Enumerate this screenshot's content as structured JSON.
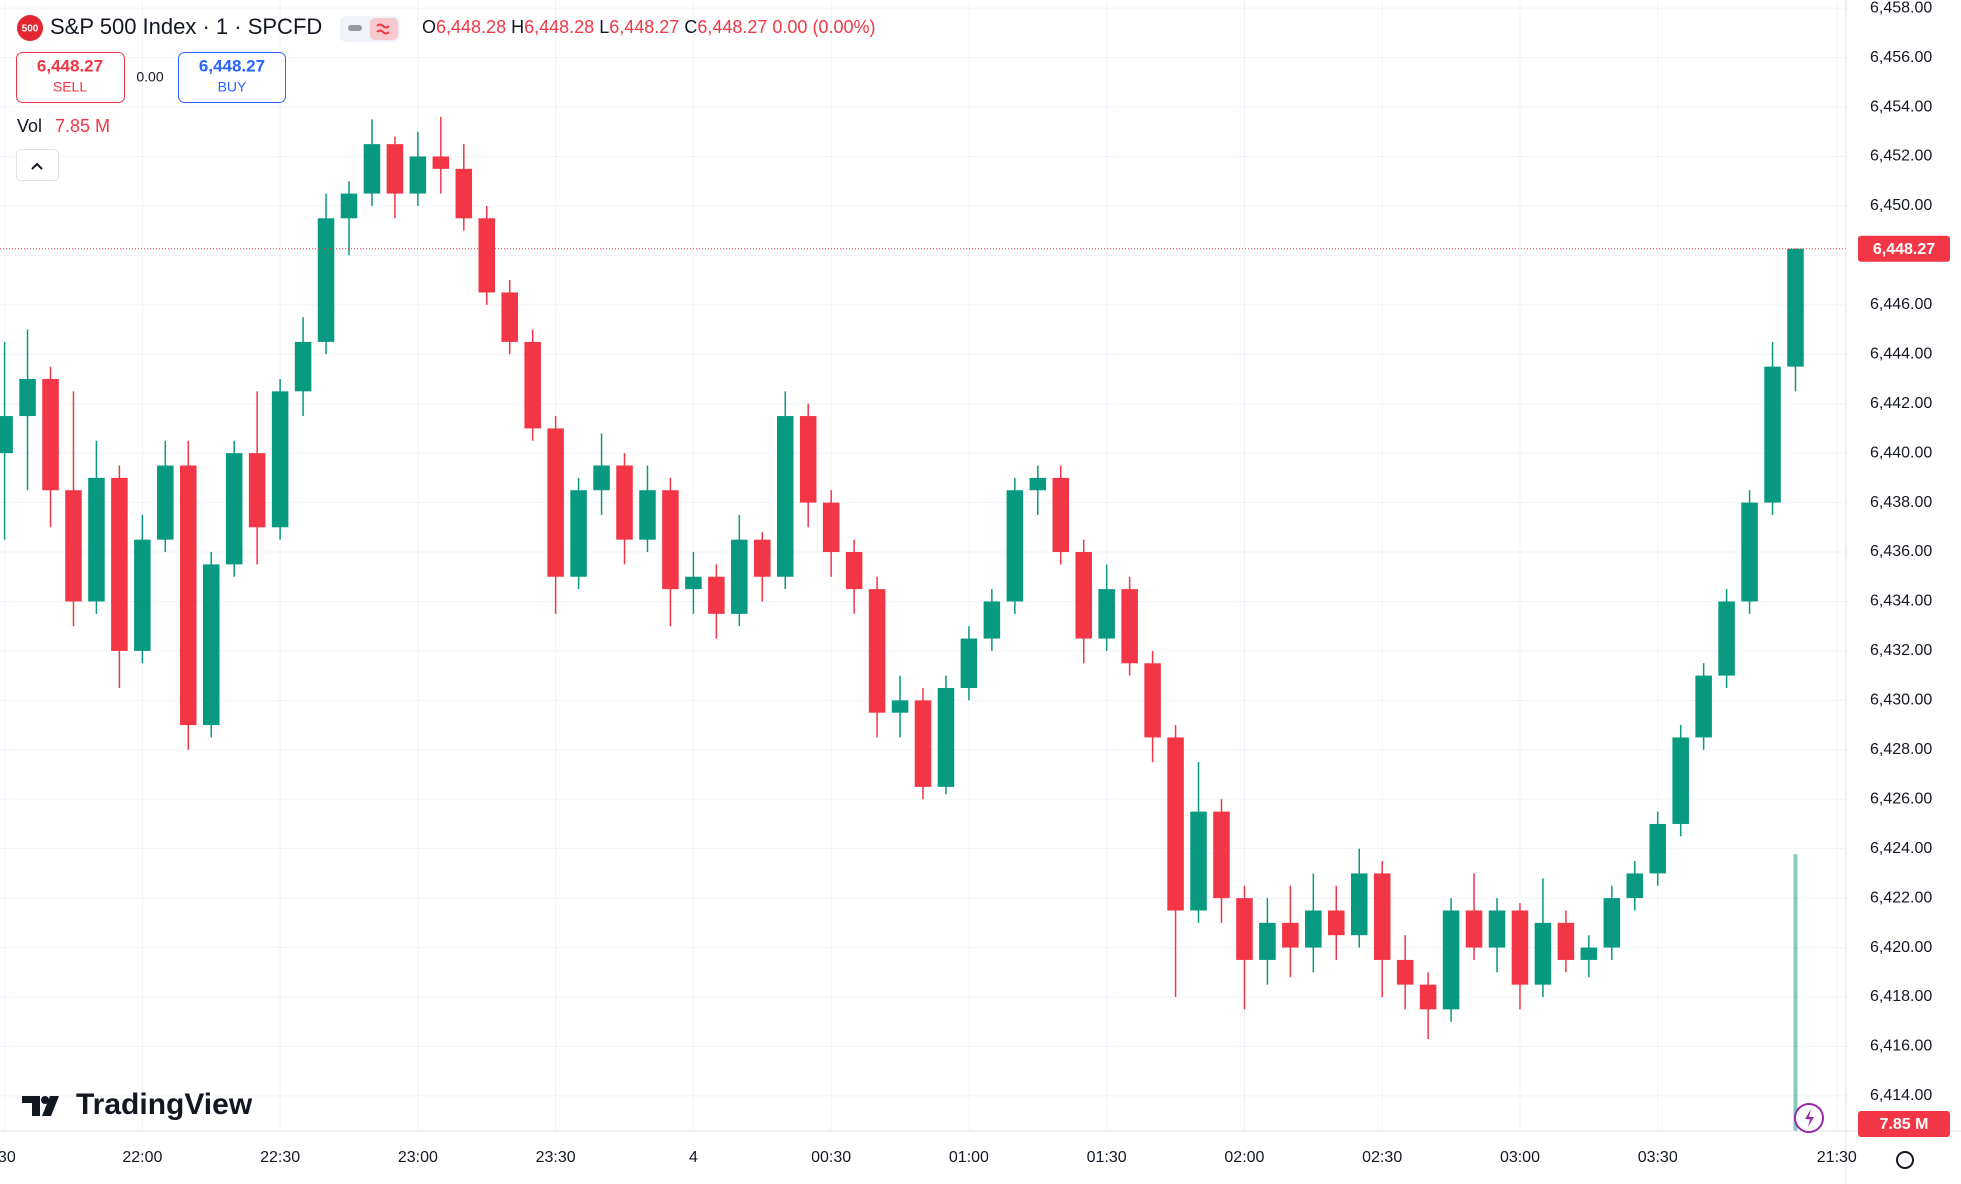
{
  "header": {
    "badge": "500",
    "title": "S&P 500 Index · 1 · SPCFD",
    "ohlc": [
      {
        "label": "O",
        "value": "6,448.28"
      },
      {
        "label": "H",
        "value": "6,448.28"
      },
      {
        "label": "L",
        "value": "6,448.27"
      },
      {
        "label": "C",
        "value": "6,448.27"
      }
    ],
    "change": "0.00 (0.00%)",
    "sell": {
      "price": "6,448.27",
      "label": "SELL"
    },
    "spread": "0.00",
    "buy": {
      "price": "6,448.27",
      "label": "BUY"
    },
    "volume_label": "Vol"
  },
  "logo": "TradingView",
  "chart_data": {
    "type": "candlestick",
    "up_color": "#089981",
    "down_color": "#f23645",
    "grid": true,
    "x": [
      "21:30",
      "21:35",
      "21:40",
      "21:45",
      "21:50",
      "21:55",
      "22:00",
      "22:05",
      "22:10",
      "22:15",
      "22:20",
      "22:25",
      "22:30",
      "22:35",
      "22:40",
      "22:45",
      "22:50",
      "22:55",
      "23:00",
      "23:05",
      "23:10",
      "23:15",
      "23:20",
      "23:25",
      "23:30",
      "23:35",
      "23:40",
      "23:45",
      "23:50",
      "23:55",
      "00:00",
      "00:05",
      "00:10",
      "00:15",
      "00:20",
      "00:25",
      "00:30",
      "00:35",
      "00:40",
      "00:45",
      "00:50",
      "00:55",
      "01:00",
      "01:05",
      "01:10",
      "01:15",
      "01:20",
      "01:25",
      "01:30",
      "01:35",
      "01:40",
      "01:45",
      "01:50",
      "01:55",
      "02:00",
      "02:05",
      "02:10",
      "02:15",
      "02:20",
      "02:25",
      "02:30",
      "02:35",
      "02:40",
      "02:45",
      "02:50",
      "02:55",
      "03:00",
      "03:05",
      "03:10",
      "03:15",
      "03:20",
      "03:25",
      "03:30",
      "03:35",
      "03:40",
      "03:45",
      "03:50",
      "03:55",
      "04:00"
    ],
    "open": [
      6440.0,
      6441.5,
      6443.0,
      6438.5,
      6434.0,
      6439.0,
      6432.0,
      6436.5,
      6439.5,
      6429.0,
      6435.5,
      6440.0,
      6437.0,
      6442.5,
      6444.5,
      6449.5,
      6450.5,
      6452.5,
      6450.5,
      6452.0,
      6451.5,
      6449.5,
      6446.5,
      6444.5,
      6441.0,
      6435.0,
      6438.5,
      6439.5,
      6436.5,
      6438.5,
      6434.5,
      6435.0,
      6433.5,
      6436.5,
      6435.0,
      6441.5,
      6438.0,
      6436.0,
      6434.5,
      6429.5,
      6430.0,
      6426.5,
      6430.5,
      6432.5,
      6434.0,
      6438.5,
      6439.0,
      6436.0,
      6432.5,
      6434.5,
      6431.5,
      6428.5,
      6421.5,
      6425.5,
      6422.0,
      6419.5,
      6421.0,
      6420.0,
      6421.5,
      6420.5,
      6423.0,
      6419.5,
      6418.5,
      6417.5,
      6421.5,
      6420.0,
      6421.5,
      6418.5,
      6421.0,
      6419.5,
      6420.0,
      6422.0,
      6423.0,
      6425.0,
      6428.5,
      6431.0,
      6434.0,
      6438.0,
      6443.5
    ],
    "high": [
      6444.5,
      6445.0,
      6443.5,
      6442.5,
      6440.5,
      6439.5,
      6437.5,
      6440.5,
      6440.5,
      6436.0,
      6440.5,
      6442.5,
      6443.0,
      6445.5,
      6450.5,
      6451.0,
      6453.5,
      6452.8,
      6453.0,
      6453.6,
      6452.5,
      6450.0,
      6447.0,
      6445.0,
      6441.5,
      6439.0,
      6440.8,
      6440.0,
      6439.5,
      6439.0,
      6436.0,
      6435.5,
      6437.5,
      6436.8,
      6442.5,
      6442.0,
      6438.5,
      6436.5,
      6435.0,
      6431.0,
      6430.5,
      6431.0,
      6433.0,
      6434.5,
      6439.0,
      6439.5,
      6439.5,
      6436.5,
      6435.5,
      6435.0,
      6432.0,
      6429.0,
      6427.5,
      6426.0,
      6422.5,
      6422.0,
      6422.5,
      6423.0,
      6422.5,
      6424.0,
      6423.5,
      6420.5,
      6419.0,
      6422.0,
      6423.0,
      6422.0,
      6421.8,
      6422.8,
      6421.5,
      6420.5,
      6422.5,
      6423.5,
      6425.5,
      6429.0,
      6431.5,
      6434.5,
      6438.5,
      6444.5,
      6448.28
    ],
    "low": [
      6436.5,
      6438.5,
      6437.0,
      6433.0,
      6433.5,
      6430.5,
      6431.5,
      6436.0,
      6428.0,
      6428.5,
      6435.0,
      6435.5,
      6436.5,
      6441.5,
      6444.0,
      6448.0,
      6450.0,
      6449.5,
      6450.0,
      6450.5,
      6449.0,
      6446.0,
      6444.0,
      6440.5,
      6433.5,
      6434.5,
      6437.5,
      6435.5,
      6436.0,
      6433.0,
      6433.5,
      6432.5,
      6433.0,
      6434.0,
      6434.5,
      6437.0,
      6435.0,
      6433.5,
      6428.5,
      6428.5,
      6426.0,
      6426.2,
      6430.0,
      6432.0,
      6433.5,
      6437.5,
      6435.5,
      6431.5,
      6432.0,
      6431.0,
      6427.5,
      6418.0,
      6421.0,
      6421.0,
      6417.5,
      6418.5,
      6418.8,
      6419.0,
      6419.5,
      6420.0,
      6418.0,
      6417.5,
      6416.3,
      6417.0,
      6419.5,
      6419.0,
      6417.5,
      6418.0,
      6419.0,
      6418.8,
      6419.5,
      6421.5,
      6422.5,
      6424.5,
      6428.0,
      6430.5,
      6433.5,
      6437.5,
      6442.5
    ],
    "close": [
      6441.5,
      6443.0,
      6438.5,
      6434.0,
      6439.0,
      6432.0,
      6436.5,
      6439.5,
      6429.0,
      6435.5,
      6440.0,
      6437.0,
      6442.5,
      6444.5,
      6449.5,
      6450.5,
      6452.5,
      6450.5,
      6452.0,
      6451.5,
      6449.5,
      6446.5,
      6444.5,
      6441.0,
      6435.0,
      6438.5,
      6439.5,
      6436.5,
      6438.5,
      6434.5,
      6435.0,
      6433.5,
      6436.5,
      6435.0,
      6441.5,
      6438.0,
      6436.0,
      6434.5,
      6429.5,
      6430.0,
      6426.5,
      6430.5,
      6432.5,
      6434.0,
      6438.5,
      6439.0,
      6436.0,
      6432.5,
      6434.5,
      6431.5,
      6428.5,
      6421.5,
      6425.5,
      6422.0,
      6419.5,
      6421.0,
      6420.0,
      6421.5,
      6420.5,
      6423.0,
      6419.5,
      6418.5,
      6417.5,
      6421.5,
      6420.0,
      6421.5,
      6418.5,
      6421.0,
      6419.5,
      6420.0,
      6422.0,
      6423.0,
      6425.0,
      6428.5,
      6431.0,
      6434.0,
      6438.0,
      6443.5,
      6448.27
    ],
    "xlim": [
      "21:29",
      "04:11"
    ],
    "xticks": [
      {
        "value": "21:30",
        "label": ":30"
      },
      "22:00",
      "22:30",
      "23:00",
      "23:30",
      {
        "value": "00:00",
        "label": "4"
      },
      "00:30",
      "01:00",
      "01:30",
      "02:00",
      "02:30",
      "03:00",
      "03:30",
      {
        "value": "04:09",
        "label": "21:30"
      }
    ],
    "ylim": [
      6412.58,
      6458.33
    ],
    "yticks": [
      {
        "value": 6414,
        "label": "6,414.00"
      },
      {
        "value": 6416,
        "label": "6,416.00"
      },
      {
        "value": 6418,
        "label": "6,418.00"
      },
      {
        "value": 6420,
        "label": "6,420.00"
      },
      {
        "value": 6422,
        "label": "6,422.00"
      },
      {
        "value": 6424,
        "label": "6,424.00"
      },
      {
        "value": 6426,
        "label": "6,426.00"
      },
      {
        "value": 6428,
        "label": "6,428.00"
      },
      {
        "value": 6430,
        "label": "6,430.00"
      },
      {
        "value": 6432,
        "label": "6,432.00"
      },
      {
        "value": 6434,
        "label": "6,434.00"
      },
      {
        "value": 6436,
        "label": "6,436.00"
      },
      {
        "value": 6438,
        "label": "6,438.00"
      },
      {
        "value": 6440,
        "label": "6,440.00"
      },
      {
        "value": 6442,
        "label": "6,442.00"
      },
      {
        "value": 6444,
        "label": "6,444.00"
      },
      {
        "value": 6446,
        "label": "6,446.00"
      },
      {
        "value": 6448,
        "label": "6,448.00"
      },
      {
        "value": 6450,
        "label": "6,450.00"
      },
      {
        "value": 6452,
        "label": "6,452.00"
      },
      {
        "value": 6454,
        "label": "6,454.00"
      },
      {
        "value": 6456,
        "label": "6,456.00"
      },
      {
        "value": 6458,
        "label": "6,458.00"
      }
    ],
    "last_price": {
      "value": 6448.27,
      "label": "6,448.27"
    },
    "volume": {
      "value": 7850000,
      "label": "7.85 M"
    },
    "volume_lim": [
      0,
      8000000
    ]
  }
}
